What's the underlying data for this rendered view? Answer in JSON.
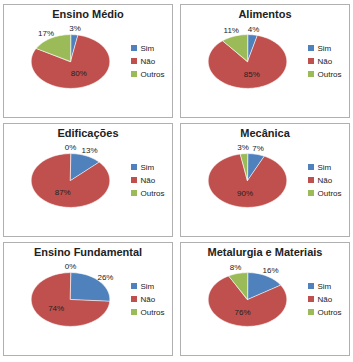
{
  "chart_data": [
    {
      "type": "pie",
      "title": "Ensino Médio",
      "categories": [
        "Sim",
        "Não",
        "Outros"
      ],
      "values": [
        3,
        80,
        17
      ],
      "value_labels": [
        "3%",
        "80%",
        "17%"
      ],
      "colors": [
        "#4f81bd",
        "#c0504d",
        "#9bbb59"
      ],
      "data_labels": true,
      "legend": "right"
    },
    {
      "type": "pie",
      "title": "Alimentos",
      "categories": [
        "Sim",
        "Não",
        "Outros"
      ],
      "values": [
        4,
        85,
        11
      ],
      "value_labels": [
        "4%",
        "85%",
        "11%"
      ],
      "colors": [
        "#4f81bd",
        "#c0504d",
        "#9bbb59"
      ],
      "data_labels": true,
      "legend": "right"
    },
    {
      "type": "pie",
      "title": "Edificações",
      "categories": [
        "Sim",
        "Não",
        "Outros"
      ],
      "values": [
        13,
        87,
        0
      ],
      "value_labels": [
        "13%",
        "87%",
        "0%"
      ],
      "colors": [
        "#4f81bd",
        "#c0504d",
        "#9bbb59"
      ],
      "data_labels": true,
      "legend": "right"
    },
    {
      "type": "pie",
      "title": "Mecânica",
      "categories": [
        "Sim",
        "Não",
        "Outros"
      ],
      "values": [
        7,
        90,
        3
      ],
      "value_labels": [
        "7%",
        "90%",
        "3%"
      ],
      "colors": [
        "#4f81bd",
        "#c0504d",
        "#9bbb59"
      ],
      "data_labels": true,
      "legend": "right"
    },
    {
      "type": "pie",
      "title": "Ensino Fundamental",
      "categories": [
        "Sim",
        "Não",
        "Outros"
      ],
      "values": [
        26,
        74,
        0
      ],
      "value_labels": [
        "26%",
        "74%",
        "0%"
      ],
      "colors": [
        "#4f81bd",
        "#c0504d",
        "#9bbb59"
      ],
      "data_labels": true,
      "legend": "right"
    },
    {
      "type": "pie",
      "title": "Metalurgia e Materiais",
      "categories": [
        "Sim",
        "Não",
        "Outros"
      ],
      "values": [
        16,
        76,
        8
      ],
      "value_labels": [
        "16%",
        "76%",
        "8%"
      ],
      "colors": [
        "#4f81bd",
        "#c0504d",
        "#9bbb59"
      ],
      "data_labels": true,
      "legend": "right"
    }
  ]
}
